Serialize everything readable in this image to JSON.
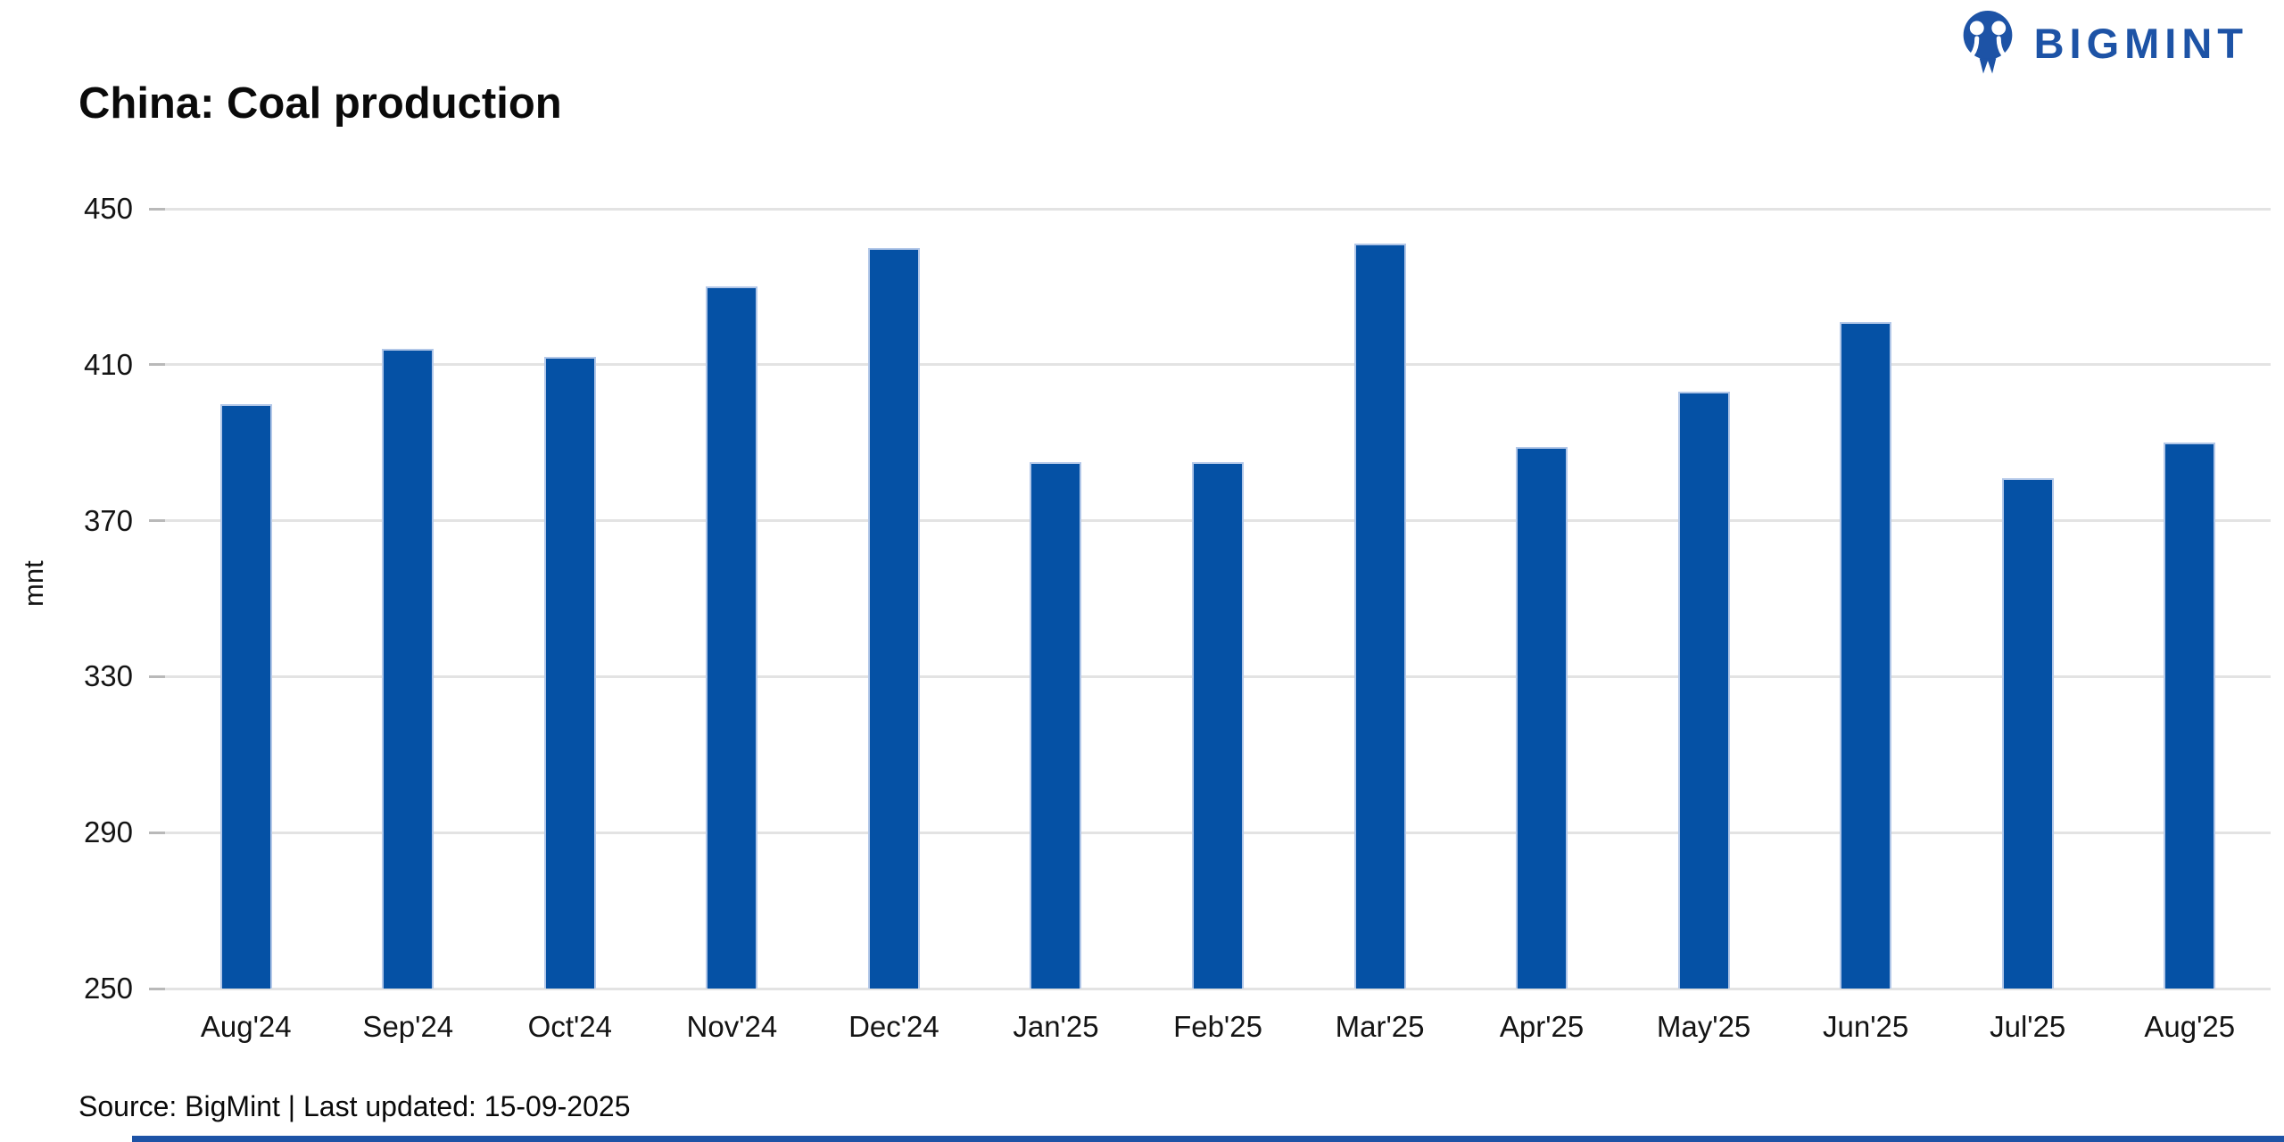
{
  "header": {
    "title": "China: Coal production",
    "logo_text": "BIGMINT"
  },
  "y_axis_title": "mnt",
  "footer": {
    "source_text": "Source: BigMint | Last updated: 15-09-2025"
  },
  "colors": {
    "bar_fill": "#0551a5",
    "bar_edge": "#b2c7e8",
    "brand_blue": "#1d53a6",
    "gridline": "#e3e3e3"
  },
  "chart_data": {
    "type": "bar",
    "title": "China: Coal production",
    "xlabel": "",
    "ylabel": "mnt",
    "categories": [
      "Aug'24",
      "Sep'24",
      "Oct'24",
      "Nov'24",
      "Dec'24",
      "Jan'25",
      "Feb'25",
      "Mar'25",
      "Apr'25",
      "May'25",
      "Jun'25",
      "Jul'25",
      "Aug'25"
    ],
    "values": [
      400,
      414,
      412,
      430,
      440,
      385,
      385,
      441,
      389,
      403,
      421,
      381,
      390
    ],
    "ylim": [
      250,
      450
    ],
    "yticks": [
      250,
      290,
      330,
      370,
      410,
      450
    ],
    "grid": true,
    "legend": false,
    "bar_color": "#0551a5"
  }
}
